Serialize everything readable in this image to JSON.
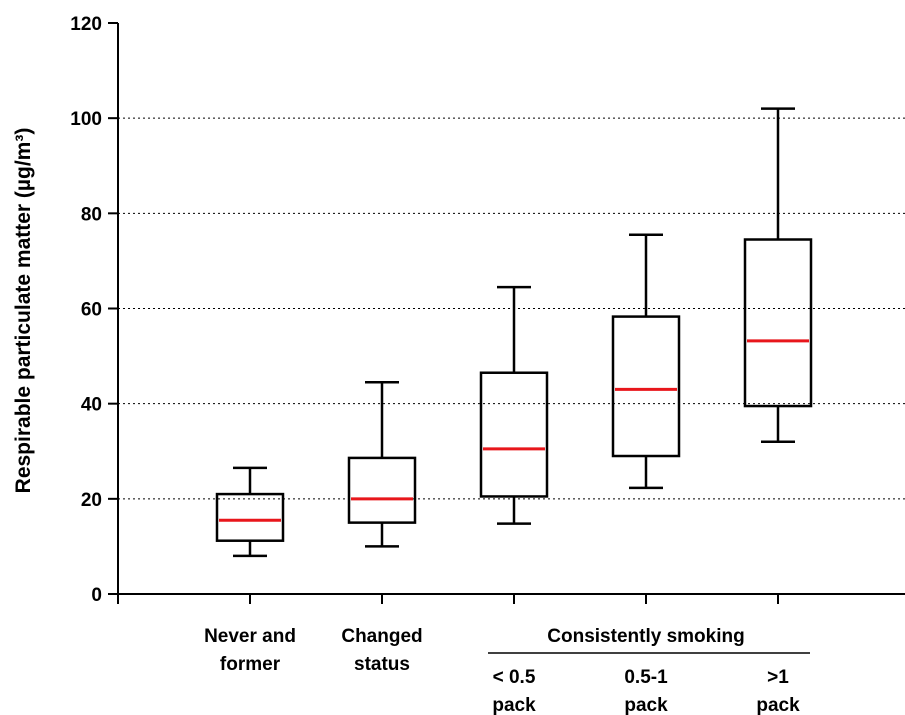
{
  "chart_data": {
    "type": "box",
    "title": "",
    "xlabel": "",
    "ylabel": "Respirable particulate matter (µg/m³)",
    "ylim": [
      0,
      120
    ],
    "yticks": [
      0,
      20,
      40,
      60,
      80,
      100,
      120
    ],
    "grid": "horizontal dotted",
    "group_label": "Consistently smoking",
    "categories": [
      {
        "label": [
          "Never and",
          "former"
        ]
      },
      {
        "label": [
          "Changed",
          "status"
        ]
      },
      {
        "label": [
          "< 0.5",
          "pack"
        ]
      },
      {
        "label": [
          "0.5-1",
          "pack"
        ]
      },
      {
        "label": [
          ">1",
          "pack"
        ]
      }
    ],
    "boxes": [
      {
        "whisker_low": 8,
        "q1": 11.2,
        "median": 15.5,
        "q3": 21,
        "whisker_high": 26.5
      },
      {
        "whisker_low": 10,
        "q1": 15,
        "median": 20,
        "q3": 28.6,
        "whisker_high": 44.5
      },
      {
        "whisker_low": 14.8,
        "q1": 20.5,
        "median": 30.5,
        "q3": 46.5,
        "whisker_high": 64.5
      },
      {
        "whisker_low": 22.3,
        "q1": 29,
        "median": 43,
        "q3": 58.3,
        "whisker_high": 75.5
      },
      {
        "whisker_low": 32,
        "q1": 39.5,
        "median": 53.2,
        "q3": 74.5,
        "whisker_high": 102
      }
    ],
    "colors": {
      "box": "#000000",
      "median": "#e8161b",
      "grid": "#000000"
    }
  }
}
